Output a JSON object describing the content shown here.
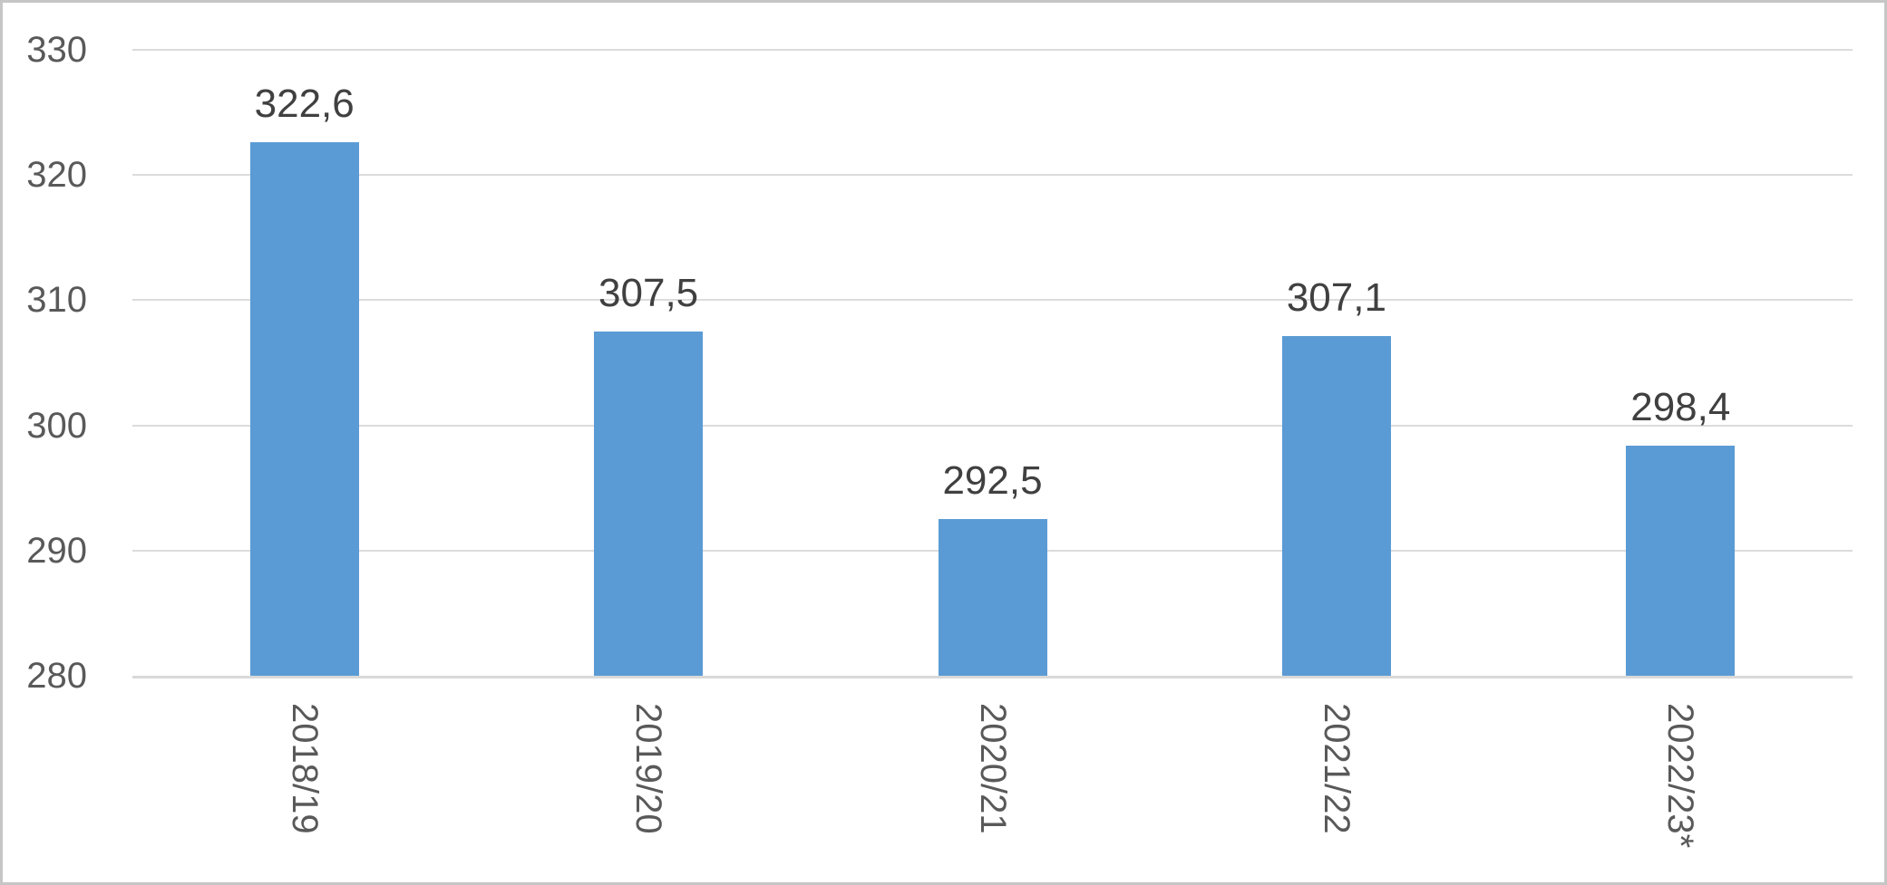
{
  "chart_data": {
    "type": "bar",
    "title": "",
    "xlabel": "",
    "ylabel": "",
    "categories": [
      "2018/19",
      "2019/20",
      "2020/21",
      "2021/22",
      "2022/23*"
    ],
    "values": [
      322.6,
      307.5,
      292.5,
      307.1,
      298.4
    ],
    "value_labels": [
      "322,6",
      "307,5",
      "292,5",
      "307,1",
      "298,4"
    ],
    "ylim": [
      280,
      330
    ],
    "y_ticks": [
      330,
      320,
      310,
      300,
      290,
      280
    ],
    "y_tick_labels": [
      "330",
      "320",
      "310",
      "300",
      "290",
      "280"
    ],
    "grid": "horizontal-only",
    "legend": "none",
    "decimal_separator": ",",
    "colors": {
      "bar": "#5B9BD5",
      "gridline": "#DCDCDC",
      "axis_line": "#D9D9D9",
      "value_label": "#404040",
      "tick_label": "#595959",
      "frame_border": "#C6C6C6",
      "background": "#FFFFFF"
    }
  }
}
